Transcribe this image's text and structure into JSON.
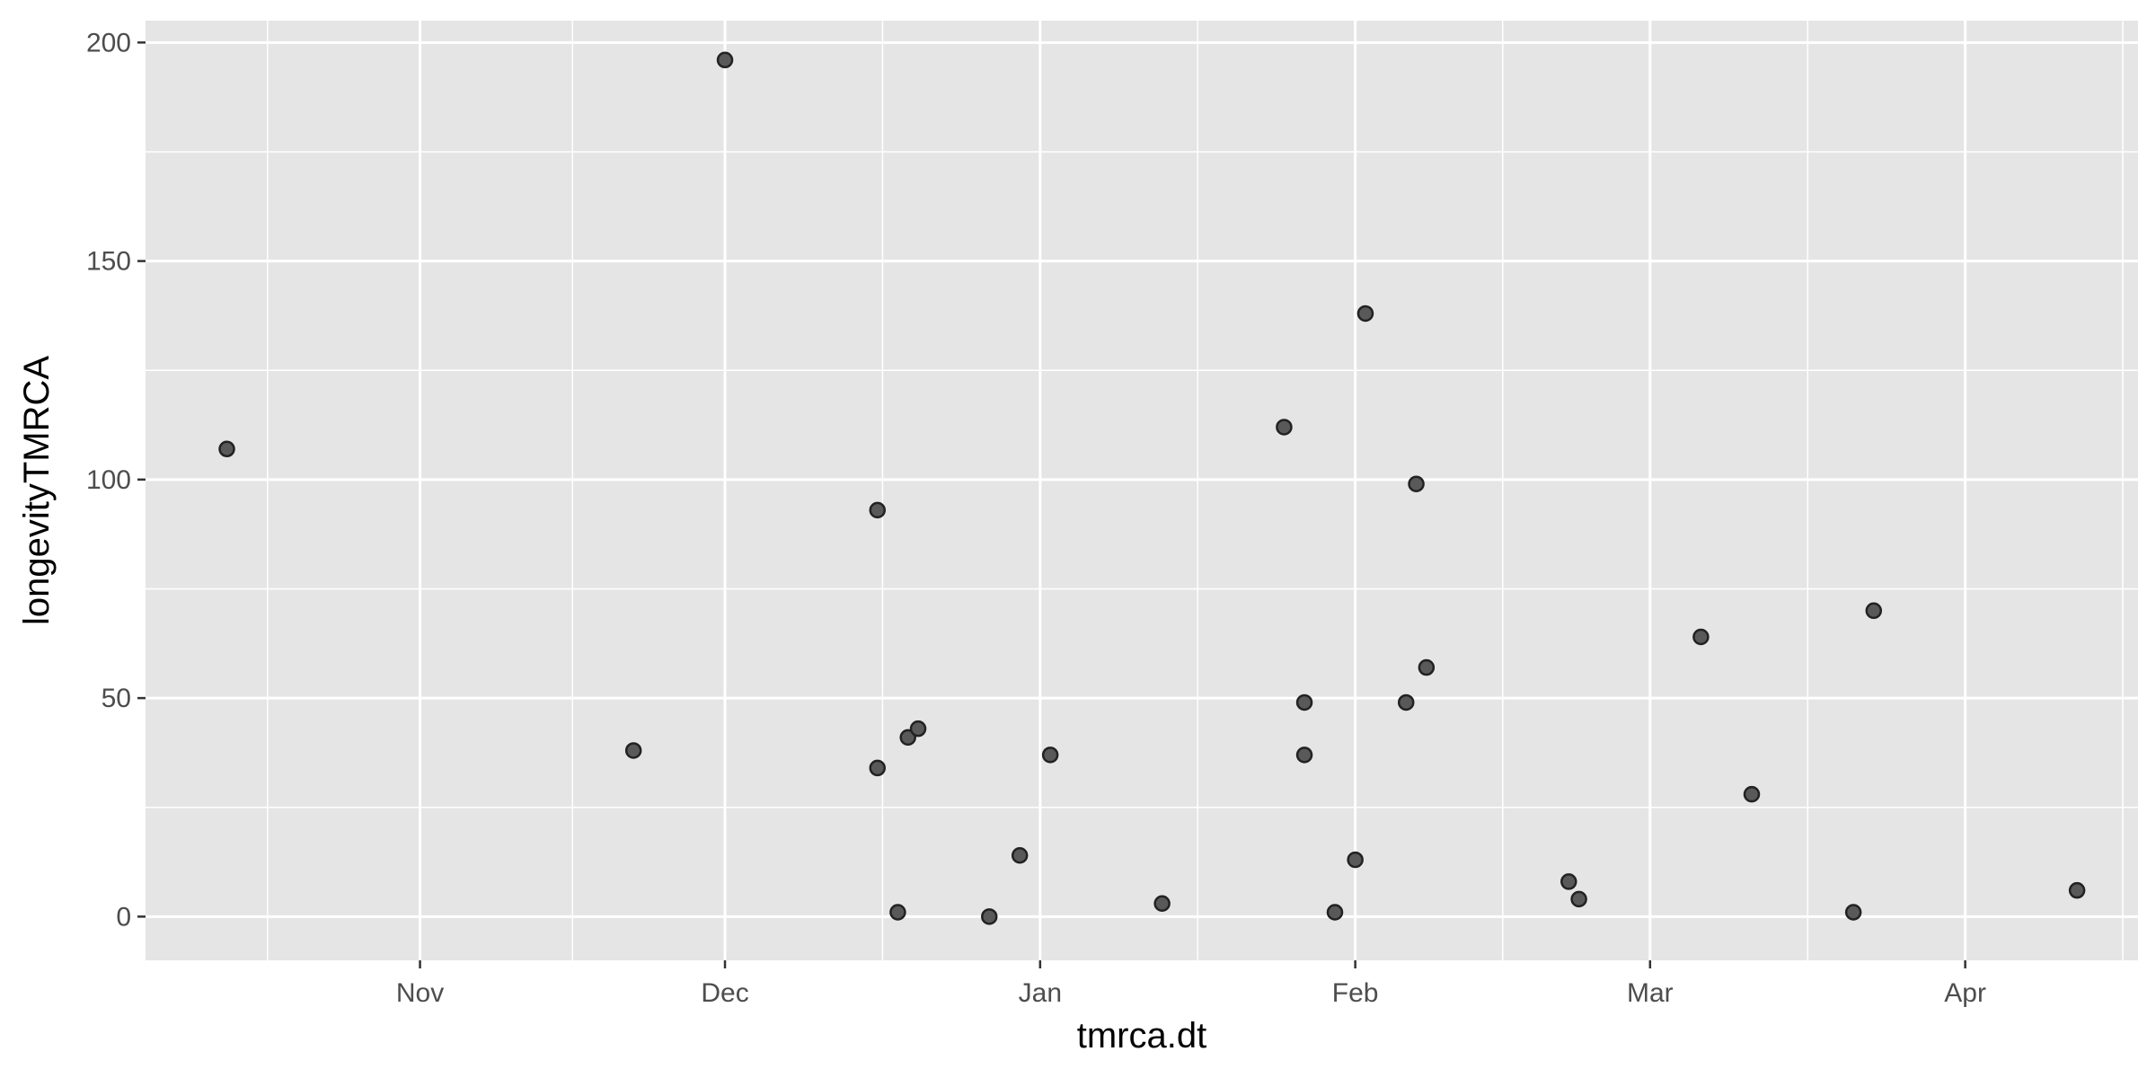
{
  "chart_data": {
    "type": "scatter",
    "title": "",
    "xlabel": "tmrca.dt",
    "ylabel": "longevityTMRCA",
    "x_type": "date",
    "xlim": [
      "2019-10-05",
      "2020-04-18"
    ],
    "ylim": [
      -10,
      205
    ],
    "x_ticks": [
      {
        "label": "Nov",
        "date": "2019-11-01"
      },
      {
        "label": "Dec",
        "date": "2019-12-01"
      },
      {
        "label": "Jan",
        "date": "2020-01-01"
      },
      {
        "label": "Feb",
        "date": "2020-02-01"
      },
      {
        "label": "Mar",
        "date": "2020-03-01"
      },
      {
        "label": "Apr",
        "date": "2020-04-01"
      }
    ],
    "y_ticks": [
      0,
      50,
      100,
      150,
      200
    ],
    "grid": true,
    "colors": {
      "panel": "#e5e5e5",
      "grid": "#ffffff",
      "point_fill": "#595959",
      "point_stroke": "#222222"
    },
    "points": [
      {
        "x": "2019-10-13",
        "y": 107
      },
      {
        "x": "2019-11-22",
        "y": 38
      },
      {
        "x": "2019-12-01",
        "y": 196
      },
      {
        "x": "2019-12-16",
        "y": 93
      },
      {
        "x": "2019-12-16",
        "y": 34
      },
      {
        "x": "2019-12-18",
        "y": 1
      },
      {
        "x": "2019-12-19",
        "y": 41
      },
      {
        "x": "2019-12-20",
        "y": 43
      },
      {
        "x": "2019-12-27",
        "y": 0
      },
      {
        "x": "2019-12-30",
        "y": 14
      },
      {
        "x": "2020-01-02",
        "y": 37
      },
      {
        "x": "2020-01-13",
        "y": 3
      },
      {
        "x": "2020-01-25",
        "y": 112
      },
      {
        "x": "2020-01-27",
        "y": 49
      },
      {
        "x": "2020-01-27",
        "y": 37
      },
      {
        "x": "2020-01-30",
        "y": 1
      },
      {
        "x": "2020-02-01",
        "y": 13
      },
      {
        "x": "2020-02-02",
        "y": 138
      },
      {
        "x": "2020-02-06",
        "y": 49
      },
      {
        "x": "2020-02-07",
        "y": 99
      },
      {
        "x": "2020-02-08",
        "y": 57
      },
      {
        "x": "2020-02-22",
        "y": 8
      },
      {
        "x": "2020-02-23",
        "y": 4
      },
      {
        "x": "2020-03-06",
        "y": 64
      },
      {
        "x": "2020-03-11",
        "y": 28
      },
      {
        "x": "2020-03-21",
        "y": 1
      },
      {
        "x": "2020-03-23",
        "y": 70
      },
      {
        "x": "2020-04-12",
        "y": 6
      }
    ]
  }
}
